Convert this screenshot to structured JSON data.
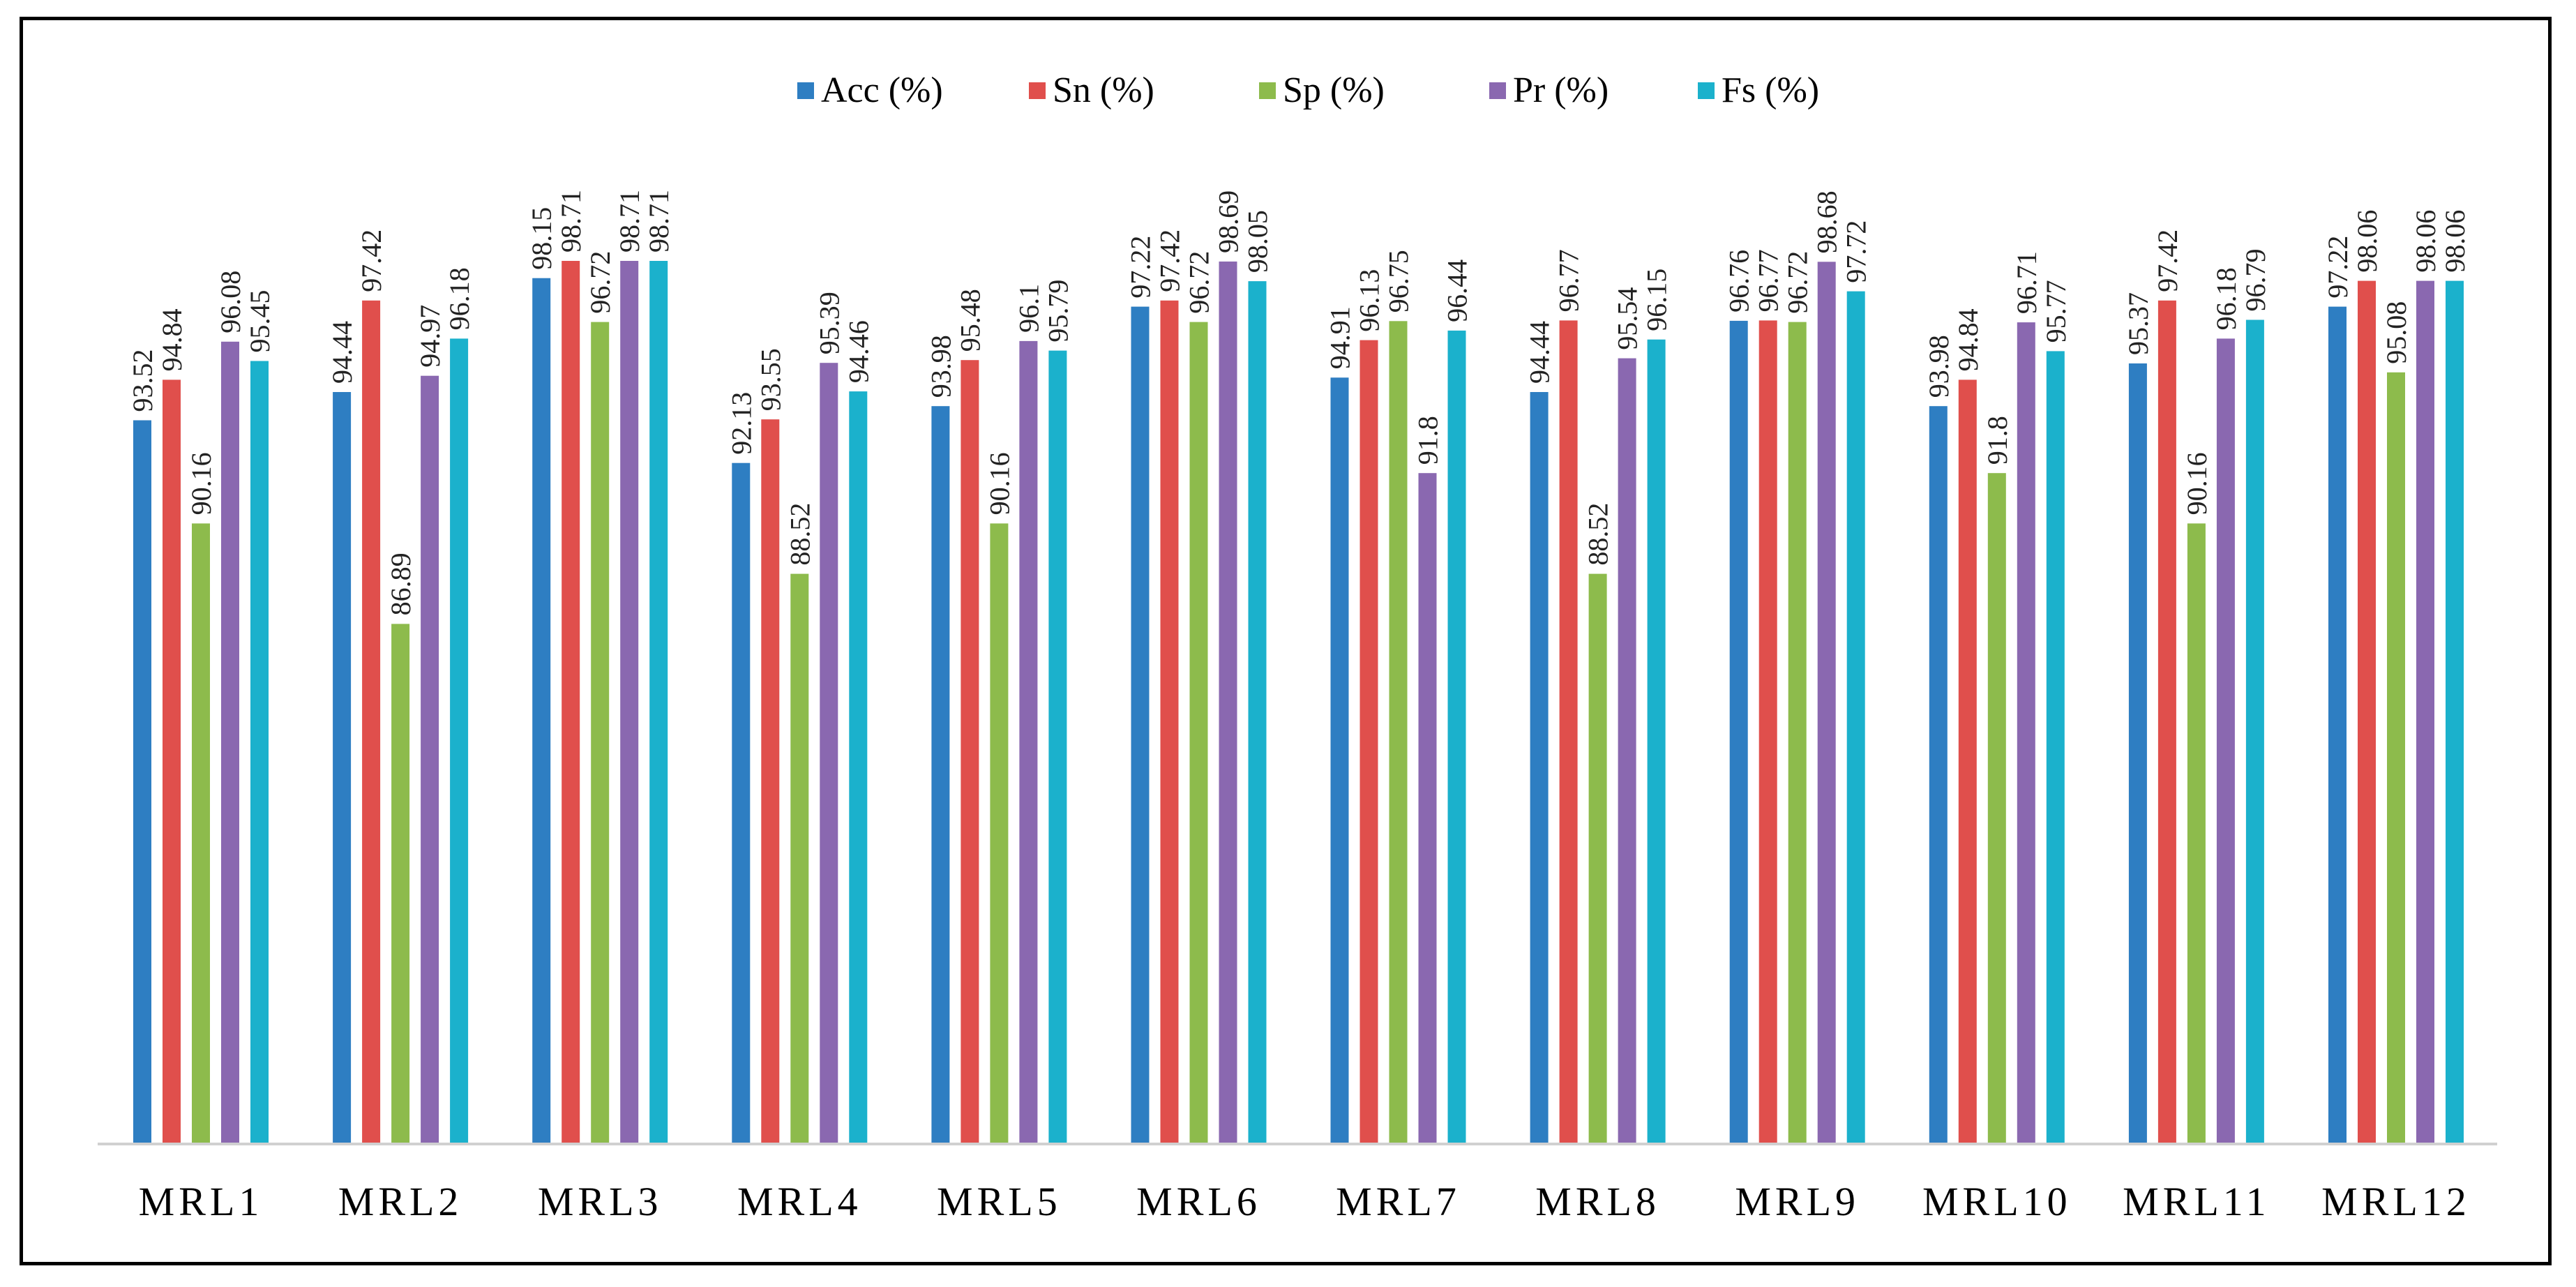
{
  "chart_data": {
    "type": "bar",
    "title": "",
    "xlabel": "",
    "ylabel": "",
    "ylim": [
      70,
      100
    ],
    "grid": false,
    "legend_position": "top-center",
    "categories": [
      "MRL1",
      "MRL2",
      "MRL3",
      "MRL4",
      "MRL5",
      "MRL6",
      "MRL7",
      "MRL8",
      "MRL9",
      "MRL10",
      "MRL11",
      "MRL12"
    ],
    "series": [
      {
        "name": "Acc (%)",
        "color": "#2e7ec2",
        "values": [
          93.52,
          94.44,
          98.15,
          92.13,
          93.98,
          97.22,
          94.91,
          94.44,
          96.76,
          93.98,
          95.37,
          97.22
        ],
        "labels": [
          "93.52",
          "94.44",
          "98.15",
          "92.13",
          "93.98",
          "97.22",
          "94.91",
          "94.44",
          "96.76",
          "93.98",
          "95.37",
          "97.22"
        ]
      },
      {
        "name": "Sn (%)",
        "color": "#e04f4c",
        "values": [
          94.84,
          97.42,
          98.71,
          93.55,
          95.48,
          97.42,
          96.13,
          96.77,
          96.77,
          94.84,
          97.42,
          98.06
        ],
        "labels": [
          "94.84",
          "97.42",
          "98.71",
          "93.55",
          "95.48",
          "97.42",
          "96.13",
          "96.77",
          "96.77",
          "94.84",
          "97.42",
          "98.06"
        ]
      },
      {
        "name": "Sp (%)",
        "color": "#8dbb4c",
        "values": [
          90.16,
          86.89,
          96.72,
          88.52,
          90.16,
          96.72,
          96.75,
          88.52,
          96.72,
          91.8,
          90.16,
          95.08
        ],
        "labels": [
          "90.16",
          "86.89",
          "96.72",
          "88.52",
          "90.16",
          "96.72",
          "96.75",
          "88.52",
          "96.72",
          "91.8",
          "90.16",
          "95.08"
        ]
      },
      {
        "name": "Pr (%)",
        "color": "#8a68b0",
        "values": [
          96.08,
          94.97,
          98.71,
          95.39,
          96.1,
          98.69,
          91.8,
          95.54,
          98.68,
          96.71,
          96.18,
          98.06
        ],
        "labels": [
          "96.08",
          "94.97",
          "98.71",
          "95.39",
          "96.1",
          "98.69",
          "91.8",
          "95.54",
          "98.68",
          "96.71",
          "96.18",
          "98.06"
        ]
      },
      {
        "name": "Fs (%)",
        "color": "#1bb1cc",
        "values": [
          95.45,
          96.18,
          98.71,
          94.46,
          95.79,
          98.05,
          96.44,
          96.15,
          97.72,
          95.77,
          96.79,
          98.06
        ],
        "labels": [
          "95.45",
          "96.18",
          "98.71",
          "94.46",
          "95.79",
          "98.05",
          "96.44",
          "96.15",
          "97.72",
          "95.77",
          "96.79",
          "98.06"
        ]
      }
    ]
  }
}
